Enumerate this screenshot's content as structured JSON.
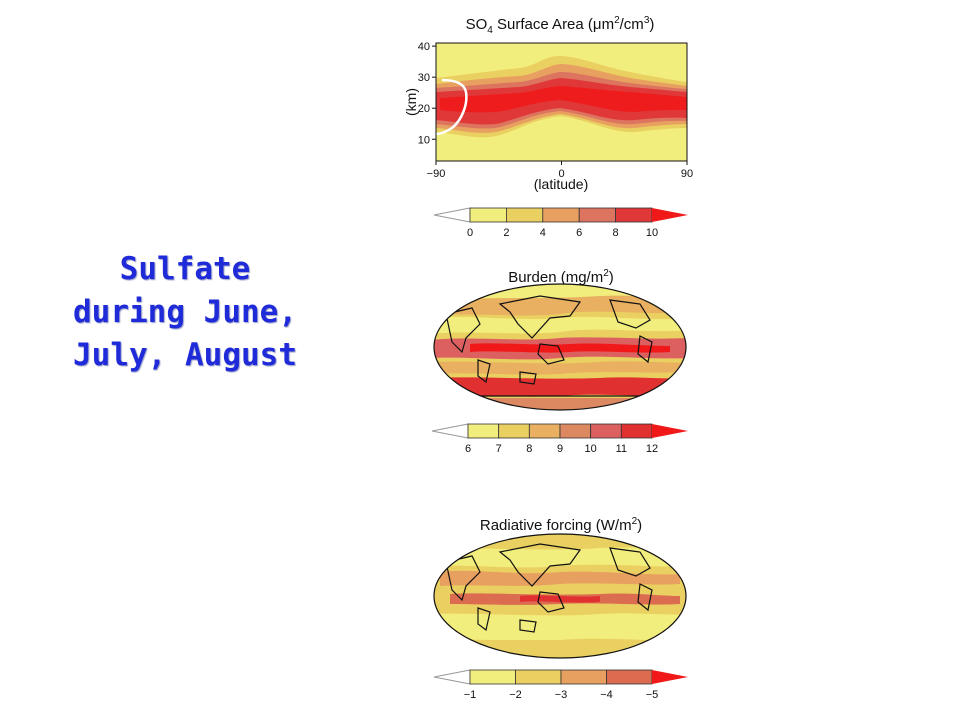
{
  "slide": {
    "line1": "Sulfate",
    "line2": "during June,",
    "line3": "July, August"
  },
  "chart_data": [
    {
      "type": "heatmap",
      "title": "SO4 Surface Area (µm2/cm3)",
      "title_parts": {
        "a": "SO",
        "sub": "4",
        "b": " Surface Area (",
        "mu": "μ",
        "c": "m",
        "sup1": "2",
        "d": "/cm",
        "sup2": "3",
        "e": ")"
      },
      "xlabel": "(latitude)",
      "ylabel": "(km)",
      "x_ticks": [
        "−90",
        "0",
        "90"
      ],
      "y_ticks": [
        "10",
        "20",
        "30",
        "40"
      ],
      "xlim": [
        -90,
        90
      ],
      "ylim": [
        3,
        41
      ],
      "colorbar": {
        "ticks": [
          "0",
          "2",
          "4",
          "6",
          "8",
          "10"
        ],
        "colors": [
          "#f2ee7e",
          "#ead060",
          "#e8a060",
          "#dc7460",
          "#e03838",
          "#f01818"
        ]
      }
    },
    {
      "type": "heatmap",
      "title": "Burden (mg/m2)",
      "title_parts": {
        "a": "Burden (mg/m",
        "sup": "2",
        "b": ")"
      },
      "colorbar": {
        "ticks": [
          "6",
          "7",
          "8",
          "9",
          "10",
          "11",
          "12"
        ],
        "colors": [
          "#f2ee7e",
          "#ead060",
          "#e8b060",
          "#dc8860",
          "#dc6060",
          "#e03030",
          "#f01818"
        ]
      }
    },
    {
      "type": "heatmap",
      "title": "Radiative forcing (W/m2)",
      "title_parts": {
        "a": "Radiative forcing (W/m",
        "sup": "2",
        "b": ")"
      },
      "colorbar": {
        "ticks": [
          "−1",
          "−2",
          "−3",
          "−4",
          "−5"
        ],
        "colors": [
          "#f2ee7e",
          "#ead060",
          "#e8a060",
          "#dc6c50",
          "#e03030",
          "#f01818"
        ]
      }
    }
  ]
}
